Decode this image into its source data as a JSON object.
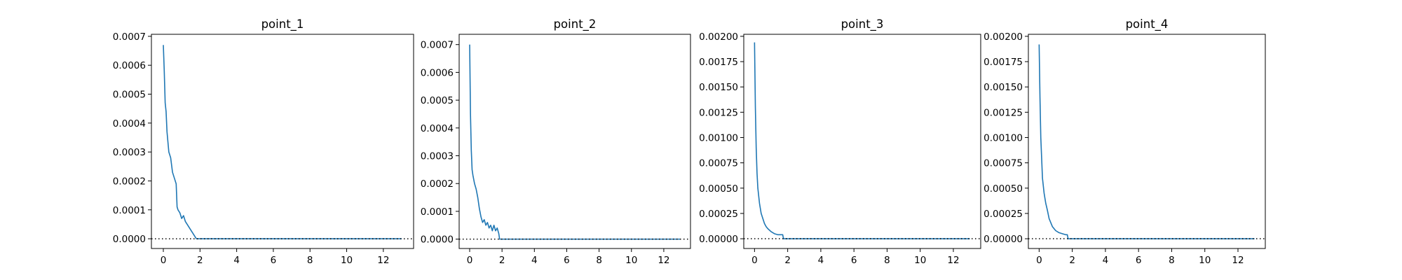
{
  "figure": {
    "line_color": "#1f77b4",
    "reference_line_color": "#000000",
    "reference_line_style": "dotted",
    "background": "#ffffff"
  },
  "chart_data": [
    {
      "type": "line",
      "title": "point_1",
      "xlabel": "",
      "ylabel": "",
      "xlim": [
        -0.65,
        13.65
      ],
      "ylim": [
        -3.37e-05,
        0.000707
      ],
      "xticks": [
        "0",
        "2",
        "4",
        "6",
        "8",
        "10",
        "12"
      ],
      "yticks": [
        "0.0000",
        "0.0001",
        "0.0002",
        "0.0003",
        "0.0004",
        "0.0005",
        "0.0006",
        "0.0007"
      ],
      "reference_line_y": 0,
      "grid": false,
      "series": [
        {
          "x": [
            0,
            0.05,
            0.1,
            0.15,
            0.2,
            0.3,
            0.4,
            0.5,
            0.6,
            0.7,
            0.75,
            0.8,
            0.9,
            1.0,
            1.1,
            1.2,
            1.3,
            1.4,
            1.5,
            1.6,
            1.7,
            1.8,
            2,
            4,
            6,
            8,
            10,
            12,
            13
          ],
          "y": [
            0.00067,
            0.00058,
            0.00047,
            0.00044,
            0.00037,
            0.0003,
            0.00028,
            0.00023,
            0.00021,
            0.00019,
            0.00011,
            0.0001,
            9e-05,
            7e-05,
            8e-05,
            6e-05,
            5e-05,
            4e-05,
            3e-05,
            2e-05,
            1e-05,
            0.0,
            0.0,
            0.0,
            0.0,
            0.0,
            0.0,
            0.0,
            0.0
          ]
        }
      ]
    },
    {
      "type": "line",
      "title": "point_2",
      "xlabel": "",
      "ylabel": "",
      "xlim": [
        -0.65,
        13.65
      ],
      "ylim": [
        -3.37e-05,
        0.000737
      ],
      "xticks": [
        "0",
        "2",
        "4",
        "6",
        "8",
        "10",
        "12"
      ],
      "yticks": [
        "0.0000",
        "0.0001",
        "0.0002",
        "0.0003",
        "0.0004",
        "0.0005",
        "0.0006",
        "0.0007"
      ],
      "reference_line_y": 0,
      "grid": false,
      "series": [
        {
          "x": [
            0,
            0.05,
            0.1,
            0.15,
            0.2,
            0.3,
            0.4,
            0.5,
            0.6,
            0.7,
            0.8,
            0.9,
            1.0,
            1.1,
            1.2,
            1.3,
            1.4,
            1.5,
            1.6,
            1.7,
            1.8,
            1.85,
            2,
            4,
            6,
            8,
            10,
            12,
            13
          ],
          "y": [
            0.0007,
            0.00045,
            0.00032,
            0.00025,
            0.00023,
            0.0002,
            0.00018,
            0.00015,
            0.00011,
            8e-05,
            6e-05,
            7e-05,
            5e-05,
            6e-05,
            4e-05,
            5e-05,
            3e-05,
            5e-05,
            3e-05,
            4e-05,
            2e-05,
            0.0,
            0.0,
            0.0,
            0.0,
            0.0,
            0.0,
            0.0,
            0.0
          ]
        }
      ]
    },
    {
      "type": "line",
      "title": "point_3",
      "xlabel": "",
      "ylabel": "",
      "xlim": [
        -0.65,
        13.65
      ],
      "ylim": [
        -9.64e-05,
        0.00202
      ],
      "xticks": [
        "0",
        "2",
        "4",
        "6",
        "8",
        "10",
        "12"
      ],
      "yticks": [
        "0.00000",
        "0.00025",
        "0.00050",
        "0.00075",
        "0.00100",
        "0.00125",
        "0.00150",
        "0.00175",
        "0.00200"
      ],
      "reference_line_y": 0,
      "grid": false,
      "series": [
        {
          "x": [
            0,
            0.05,
            0.1,
            0.15,
            0.2,
            0.3,
            0.4,
            0.5,
            0.6,
            0.7,
            0.8,
            1.0,
            1.2,
            1.4,
            1.6,
            1.7,
            1.75,
            2,
            4,
            6,
            8,
            10,
            12,
            13
          ],
          "y": [
            0.00194,
            0.0013,
            0.0009,
            0.00065,
            0.0005,
            0.00035,
            0.00025,
            0.0002,
            0.00015,
            0.00012,
            0.0001,
            7e-05,
            5e-05,
            4e-05,
            4e-05,
            4e-05,
            0.0,
            0.0,
            0.0,
            0.0,
            0.0,
            0.0,
            0.0,
            0.0
          ]
        }
      ]
    },
    {
      "type": "line",
      "title": "point_4",
      "xlabel": "",
      "ylabel": "",
      "xlim": [
        -0.65,
        13.65
      ],
      "ylim": [
        -9.64e-05,
        0.00202
      ],
      "xticks": [
        "0",
        "2",
        "4",
        "6",
        "8",
        "10",
        "12"
      ],
      "yticks": [
        "0.00000",
        "0.00025",
        "0.00050",
        "0.00075",
        "0.00100",
        "0.00125",
        "0.00150",
        "0.00175",
        "0.00200"
      ],
      "reference_line_y": 0,
      "grid": false,
      "series": [
        {
          "x": [
            0,
            0.05,
            0.1,
            0.15,
            0.2,
            0.3,
            0.4,
            0.5,
            0.6,
            0.7,
            0.8,
            1.0,
            1.2,
            1.4,
            1.6,
            1.7,
            1.75,
            2,
            4,
            6,
            8,
            10,
            12,
            13
          ],
          "y": [
            0.00192,
            0.0014,
            0.001,
            0.0008,
            0.0006,
            0.00045,
            0.00035,
            0.00028,
            0.0002,
            0.00016,
            0.00012,
            8e-05,
            6e-05,
            5e-05,
            4e-05,
            4e-05,
            0.0,
            0.0,
            0.0,
            0.0,
            0.0,
            0.0,
            0.0,
            0.0
          ]
        }
      ]
    }
  ]
}
